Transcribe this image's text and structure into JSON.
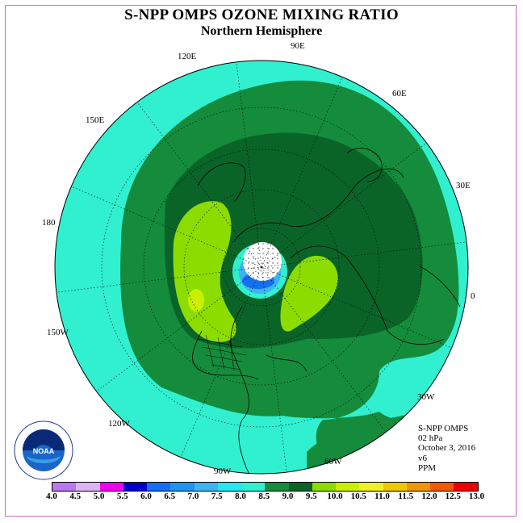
{
  "title": "S-NPP OMPS OZONE MIXING RATIO",
  "subtitle": "Northern Hemisphere",
  "longitude_labels": [
    "90E",
    "60E",
    "30E",
    "0",
    "30W",
    "60W",
    "90W",
    "120W",
    "150W",
    "180",
    "150E",
    "120E"
  ],
  "info": {
    "instrument": "S-NPP OMPS",
    "level": "02 hPa",
    "date": "October 3, 2016",
    "version": "v6",
    "units": "PPM"
  },
  "colorbar": {
    "ticks": [
      "4.0",
      "4.5",
      "5.0",
      "5.5",
      "6.0",
      "6.5",
      "7.0",
      "7.5",
      "8.0",
      "8.5",
      "9.0",
      "9.5",
      "10.0",
      "10.5",
      "11.0",
      "11.5",
      "12.0",
      "12.5",
      "13.0"
    ],
    "colors": [
      "#b878f0",
      "#dcb4f4",
      "#f000f0",
      "#0000c8",
      "#1470f0",
      "#1e96f0",
      "#3cb4f0",
      "#28e6f0",
      "#30f0d0",
      "#148c3c",
      "#0a6428",
      "#8cdc00",
      "#c8f000",
      "#f0f028",
      "#f0c800",
      "#f09600",
      "#f05a00",
      "#f00000",
      "#8c5028"
    ]
  },
  "map_colors": {
    "range_7_5_8_0": "#30f0d0",
    "range_8_0_8_5": "#148c3c",
    "range_8_5_9_0": "#0a6428",
    "range_9_0_9_5": "#8cdc00",
    "range_9_5_10_0": "#c8f000",
    "polar_low_6_0": "#1470f0",
    "polar_low_7_0": "#3cb4f0"
  },
  "logo": {
    "text": "NOAA"
  }
}
